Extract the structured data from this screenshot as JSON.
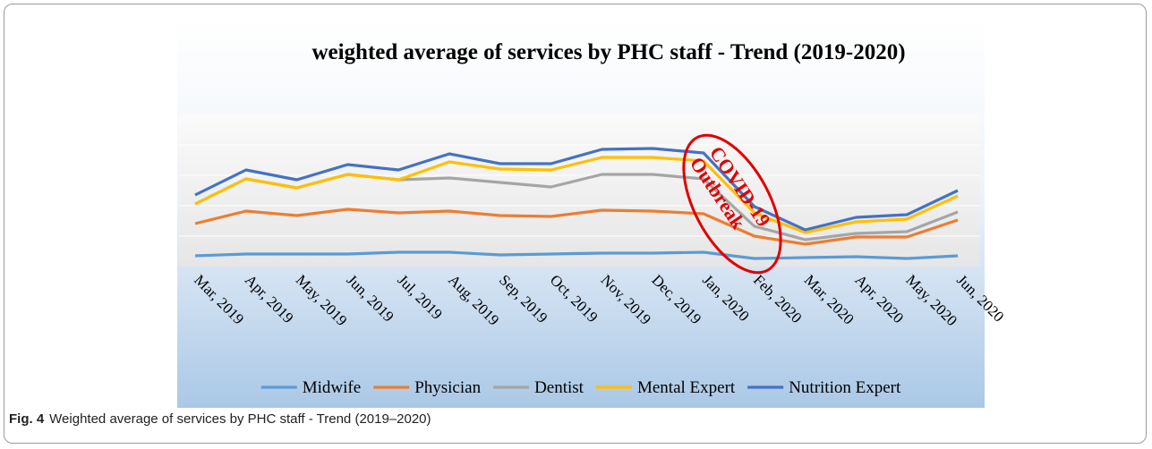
{
  "chart_data": {
    "type": "line",
    "title": "weighted average of services by PHC staff - Trend (2019-2020)",
    "categories": [
      "Mar, 2019",
      "Apr, 2019",
      "May, 2019",
      "Jun, 2019",
      "Jul, 2019",
      "Aug, 2019",
      "Sep, 2019",
      "Oct, 2019",
      "Nov, 2019",
      "Dec, 2019",
      "Jan, 2020",
      "Feb, 2020",
      "Mar, 2020",
      "Apr, 2020",
      "May, 2020",
      "Jun, 2020"
    ],
    "series": [
      {
        "name": "Midwife",
        "color": "#5b9bd5",
        "values": [
          12,
          14,
          14,
          14,
          16,
          16,
          13,
          14,
          15,
          15,
          16,
          9,
          10,
          11,
          9,
          12
        ]
      },
      {
        "name": "Physician",
        "color": "#ed7d31",
        "values": [
          48,
          62,
          57,
          64,
          60,
          62,
          57,
          56,
          63,
          62,
          59,
          34,
          25,
          33,
          33,
          52
        ]
      },
      {
        "name": "Dentist",
        "color": "#a5a5a5",
        "values": [
          70,
          98,
          88,
          103,
          97,
          99,
          94,
          89,
          103,
          103,
          98,
          45,
          30,
          37,
          39,
          61
        ]
      },
      {
        "name": "Mental Expert",
        "color": "#ffc000",
        "values": [
          70,
          98,
          88,
          103,
          97,
          117,
          109,
          108,
          122,
          122,
          118,
          60,
          38,
          50,
          53,
          79
        ]
      },
      {
        "name": "Nutrition Expert",
        "color": "#4472c4",
        "values": [
          80,
          108,
          97,
          114,
          108,
          126,
          115,
          115,
          131,
          132,
          127,
          67,
          41,
          55,
          58,
          85
        ]
      }
    ],
    "ylim": [
      0,
      170
    ],
    "annotations": [
      "COVID-19",
      "Outbreak"
    ],
    "annotation_color": "#e00000"
  },
  "caption": {
    "label": "Fig. 4",
    "text": "Weighted average of services by PHC staff - Trend (2019–2020)"
  }
}
